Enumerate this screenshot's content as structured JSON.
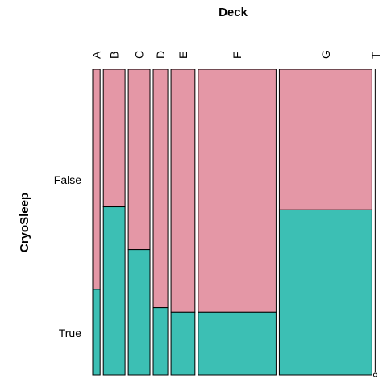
{
  "chart_data": {
    "type": "mosaic",
    "title": "Deck",
    "xlabel": "Deck",
    "ylabel": "CryoSleep",
    "x_categories": [
      "A",
      "B",
      "C",
      "D",
      "E",
      "F",
      "G",
      "T"
    ],
    "y_categories": [
      "False",
      "True"
    ],
    "column_widths": [
      0.029,
      0.085,
      0.085,
      0.057,
      0.094,
      0.305,
      0.363,
      0.002
    ],
    "true_fraction": [
      0.28,
      0.55,
      0.41,
      0.22,
      0.205,
      0.205,
      0.54,
      0.0
    ],
    "colors": {
      "False": "#e497a6",
      "True": "#3cbfb4"
    },
    "grid": false,
    "legend": "none"
  }
}
